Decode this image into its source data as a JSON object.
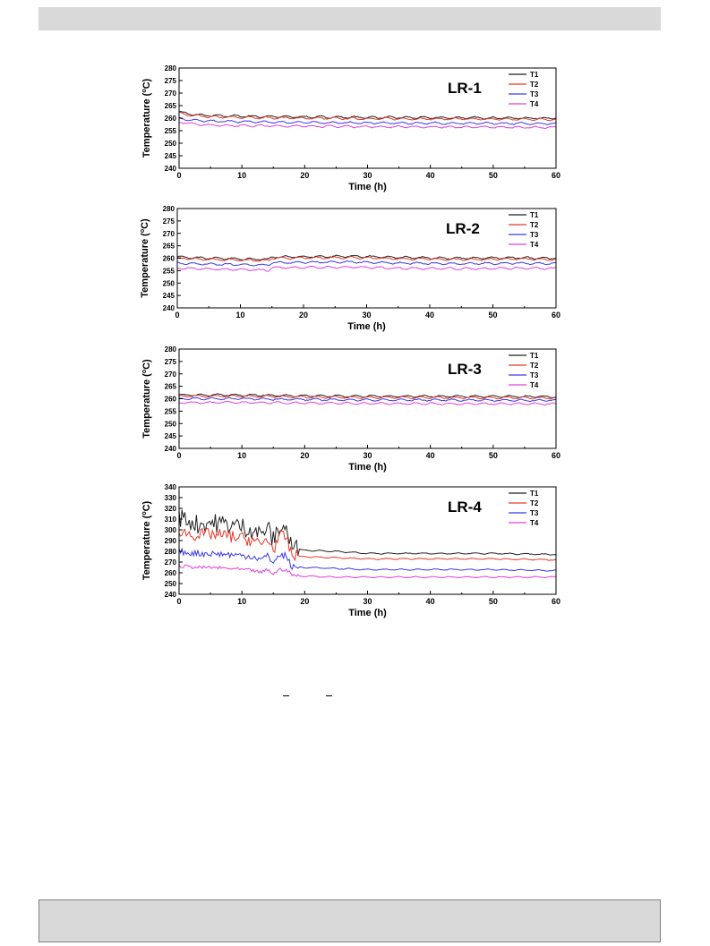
{
  "colors": {
    "T1": "#222222",
    "T2": "#e8382a",
    "T3": "#3a3ae8",
    "T4": "#e040e0"
  },
  "chart_data": [
    {
      "type": "line",
      "label": "LR-1",
      "xlabel": "Time (h)",
      "ylabel": "Temperature (",
      "ylabel_unit": "C)",
      "xlim": [
        0,
        60
      ],
      "ylim": [
        240,
        280
      ],
      "xticks": [
        0,
        10,
        20,
        30,
        40,
        50,
        60
      ],
      "yticks": [
        240,
        245,
        250,
        255,
        260,
        265,
        270,
        275,
        280
      ],
      "legend": "top-right",
      "series": [
        {
          "name": "T1",
          "x": [
            0,
            2,
            5,
            10,
            15,
            20,
            30,
            40,
            50,
            60
          ],
          "values": [
            262.5,
            261.5,
            261,
            260.8,
            260.6,
            260.5,
            260.3,
            260.2,
            260.1,
            260
          ]
        },
        {
          "name": "T2",
          "x": [
            0,
            2,
            5,
            10,
            15,
            20,
            30,
            40,
            50,
            60
          ],
          "values": [
            262,
            261,
            260.5,
            260.3,
            260.1,
            260,
            259.8,
            259.7,
            259.6,
            259.5
          ]
        },
        {
          "name": "T3",
          "x": [
            0,
            2,
            5,
            10,
            15,
            20,
            30,
            40,
            50,
            60
          ],
          "values": [
            260,
            259.2,
            258.8,
            258.6,
            258.4,
            258.3,
            258.1,
            258,
            257.9,
            257.8
          ]
        },
        {
          "name": "T4",
          "x": [
            0,
            2,
            5,
            10,
            15,
            20,
            30,
            40,
            50,
            60
          ],
          "values": [
            258.5,
            257.8,
            257.2,
            257,
            256.9,
            256.8,
            256.6,
            256.5,
            256.4,
            256.3
          ]
        }
      ]
    },
    {
      "type": "line",
      "label": "LR-2",
      "xlabel": "Time (h)",
      "ylabel": "Temperature (",
      "ylabel_unit": "C)",
      "xlim": [
        0,
        60
      ],
      "ylim": [
        240,
        280
      ],
      "xticks": [
        0,
        10,
        20,
        30,
        40,
        50,
        60
      ],
      "yticks": [
        240,
        245,
        250,
        255,
        260,
        265,
        270,
        275,
        280
      ],
      "legend": "top-right",
      "series": [
        {
          "name": "T1",
          "x": [
            0,
            5,
            10,
            14.5,
            15,
            20,
            28,
            35,
            45,
            55,
            60
          ],
          "values": [
            260.5,
            260,
            259.8,
            259.5,
            260.5,
            260.6,
            260.8,
            260.3,
            260,
            260.2,
            260
          ]
        },
        {
          "name": "T2",
          "x": [
            0,
            5,
            10,
            14.5,
            15,
            20,
            28,
            35,
            45,
            55,
            60
          ],
          "values": [
            260,
            259.5,
            259.3,
            259,
            260,
            260.1,
            260.3,
            259.8,
            259.5,
            259.7,
            259.5
          ]
        },
        {
          "name": "T3",
          "x": [
            0,
            5,
            10,
            14.5,
            15,
            20,
            28,
            35,
            45,
            55,
            60
          ],
          "values": [
            258,
            257.6,
            257.4,
            257.2,
            258.2,
            258.3,
            258.5,
            258,
            257.8,
            258,
            257.8
          ]
        },
        {
          "name": "T4",
          "x": [
            0,
            5,
            10,
            14.5,
            15,
            20,
            28,
            35,
            45,
            55,
            60
          ],
          "values": [
            256,
            255.6,
            255.4,
            255.2,
            256.2,
            256.3,
            256.4,
            256,
            255.8,
            256,
            255.8
          ]
        }
      ]
    },
    {
      "type": "line",
      "label": "LR-3",
      "xlabel": "Time (h)",
      "ylabel": "Temperature (",
      "ylabel_unit": "C)",
      "xlim": [
        0,
        60
      ],
      "ylim": [
        240,
        280
      ],
      "xticks": [
        0,
        10,
        20,
        30,
        40,
        50,
        60
      ],
      "yticks": [
        240,
        245,
        250,
        255,
        260,
        265,
        270,
        275,
        280
      ],
      "legend": "top-right",
      "series": [
        {
          "name": "T1",
          "x": [
            0,
            10,
            20,
            30,
            40,
            50,
            60
          ],
          "values": [
            261.5,
            261.5,
            261.2,
            261,
            261,
            260.9,
            260.8
          ]
        },
        {
          "name": "T2",
          "x": [
            0,
            10,
            20,
            30,
            40,
            50,
            60
          ],
          "values": [
            261,
            261,
            260.7,
            260.5,
            260.5,
            260.4,
            260.3
          ]
        },
        {
          "name": "T3",
          "x": [
            0,
            10,
            20,
            30,
            40,
            50,
            60
          ],
          "values": [
            260,
            260,
            259.7,
            259.5,
            259.5,
            259.4,
            259.3
          ]
        },
        {
          "name": "T4",
          "x": [
            0,
            10,
            20,
            30,
            40,
            50,
            60
          ],
          "values": [
            258.5,
            258.5,
            258.3,
            258.1,
            258,
            258,
            257.9
          ]
        }
      ]
    },
    {
      "type": "line",
      "label": "LR-4",
      "xlabel": "Time (h)",
      "ylabel": "Temperature (",
      "ylabel_unit": "C)",
      "xlim": [
        0,
        60
      ],
      "ylim": [
        240,
        340
      ],
      "xticks": [
        0,
        10,
        20,
        30,
        40,
        50,
        60
      ],
      "yticks": [
        240,
        250,
        260,
        270,
        280,
        290,
        300,
        310,
        320,
        330,
        340
      ],
      "legend": "top-right",
      "series": [
        {
          "name": "T1",
          "x": [
            0,
            1,
            3,
            5,
            8,
            10,
            12,
            13,
            14,
            15,
            16,
            17,
            18,
            19,
            20,
            25,
            30,
            40,
            50,
            60
          ],
          "values": [
            312,
            310,
            305,
            307,
            305,
            303,
            300,
            295,
            303,
            290,
            303,
            302,
            283,
            282,
            281,
            280,
            278,
            278,
            278,
            277
          ]
        },
        {
          "name": "T2",
          "x": [
            0,
            1,
            3,
            5,
            8,
            10,
            12,
            13,
            14,
            15,
            16,
            17,
            18,
            19,
            20,
            25,
            30,
            40,
            50,
            60
          ],
          "values": [
            300,
            297,
            295,
            296,
            294,
            292,
            290,
            285,
            292,
            282,
            294,
            293,
            276,
            275,
            275,
            274,
            273,
            273,
            273,
            272
          ]
        },
        {
          "name": "T3",
          "x": [
            0,
            1,
            3,
            5,
            8,
            10,
            12,
            13,
            14,
            15,
            16,
            17,
            18,
            19,
            20,
            25,
            30,
            40,
            50,
            60
          ],
          "values": [
            280,
            279,
            278,
            278,
            277,
            276,
            275,
            272,
            276,
            270,
            276,
            276,
            265,
            265,
            265,
            264,
            263,
            263,
            263,
            262
          ]
        },
        {
          "name": "T4",
          "x": [
            0,
            1,
            3,
            5,
            8,
            10,
            12,
            13,
            14,
            15,
            16,
            17,
            18,
            19,
            20,
            25,
            30,
            40,
            50,
            60
          ],
          "values": [
            266,
            266,
            265,
            265,
            264,
            263,
            262,
            260,
            263,
            259,
            263,
            263,
            258,
            257,
            257,
            256,
            256,
            256,
            256,
            256
          ]
        }
      ]
    }
  ]
}
